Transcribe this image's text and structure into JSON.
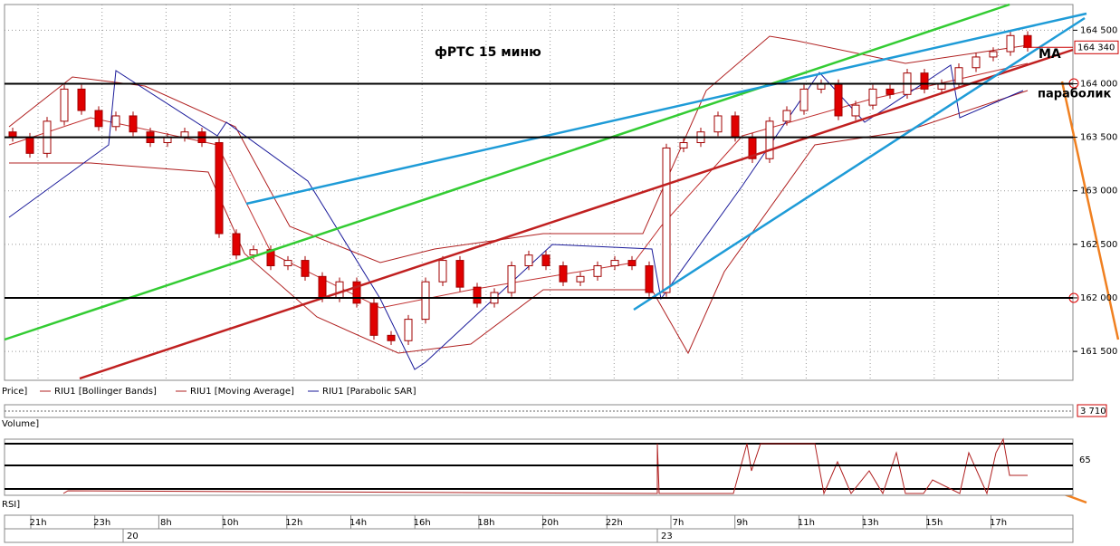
{
  "chart_data": {
    "type": "candlestick",
    "title": "фРТС   15 миню",
    "ohlc": [
      [
        163550,
        163590,
        163460,
        163500
      ],
      [
        163500,
        163540,
        163310,
        163350
      ],
      [
        163350,
        163690,
        163310,
        163650
      ],
      [
        163650,
        163990,
        163610,
        163950
      ],
      [
        163950,
        163990,
        163710,
        163750
      ],
      [
        163750,
        163790,
        163560,
        163600
      ],
      [
        163600,
        163740,
        163560,
        163700
      ],
      [
        163700,
        163740,
        163510,
        163550
      ],
      [
        163550,
        163590,
        163410,
        163450
      ],
      [
        163450,
        163540,
        163410,
        163500
      ],
      [
        163500,
        163590,
        163460,
        163550
      ],
      [
        163550,
        163590,
        163410,
        163450
      ],
      [
        163450,
        163490,
        162560,
        162600
      ],
      [
        162600,
        162640,
        162360,
        162400
      ],
      [
        162400,
        162490,
        162360,
        162450
      ],
      [
        162450,
        162490,
        162260,
        162300
      ],
      [
        162300,
        162390,
        162260,
        162350
      ],
      [
        162350,
        162390,
        162160,
        162200
      ],
      [
        162200,
        162240,
        161960,
        162000
      ],
      [
        162000,
        162190,
        161960,
        162150
      ],
      [
        162150,
        162190,
        161910,
        161950
      ],
      [
        161950,
        161990,
        161610,
        161650
      ],
      [
        161650,
        161690,
        161560,
        161600
      ],
      [
        161600,
        161840,
        161560,
        161800
      ],
      [
        161800,
        162190,
        161760,
        162150
      ],
      [
        162150,
        162390,
        162110,
        162350
      ],
      [
        162350,
        162390,
        162060,
        162100
      ],
      [
        162100,
        162140,
        161910,
        161950
      ],
      [
        161950,
        162090,
        161910,
        162050
      ],
      [
        162050,
        162340,
        162010,
        162300
      ],
      [
        162300,
        162440,
        162260,
        162400
      ],
      [
        162400,
        162440,
        162260,
        162300
      ],
      [
        162300,
        162340,
        162110,
        162150
      ],
      [
        162150,
        162240,
        162110,
        162200
      ],
      [
        162200,
        162340,
        162160,
        162300
      ],
      [
        162300,
        162390,
        162260,
        162350
      ],
      [
        162350,
        162390,
        162260,
        162300
      ],
      [
        162300,
        162340,
        162010,
        162050
      ],
      [
        162050,
        163440,
        162010,
        163400
      ],
      [
        163400,
        163490,
        163360,
        163450
      ],
      [
        163450,
        163590,
        163410,
        163550
      ],
      [
        163550,
        163740,
        163510,
        163700
      ],
      [
        163700,
        163740,
        163460,
        163500
      ],
      [
        163500,
        163540,
        163260,
        163300
      ],
      [
        163300,
        163690,
        163260,
        163650
      ],
      [
        163650,
        163790,
        163610,
        163750
      ],
      [
        163750,
        163990,
        163710,
        163950
      ],
      [
        163950,
        164040,
        163910,
        164000
      ],
      [
        164000,
        164040,
        163660,
        163700
      ],
      [
        163700,
        163840,
        163660,
        163800
      ],
      [
        163800,
        163990,
        163760,
        163950
      ],
      [
        163950,
        163990,
        163860,
        163900
      ],
      [
        163900,
        164140,
        163860,
        164100
      ],
      [
        164100,
        164140,
        163910,
        163950
      ],
      [
        163950,
        164040,
        163910,
        164000
      ],
      [
        164000,
        164190,
        163960,
        164150
      ],
      [
        164150,
        164290,
        164110,
        164250
      ],
      [
        164250,
        164340,
        164210,
        164300
      ],
      [
        164300,
        164490,
        164260,
        164450
      ],
      [
        164450,
        164490,
        164300,
        164340
      ]
    ],
    "ylim": [
      161230,
      164740
    ],
    "yticks": [
      {
        "value": 161500,
        "label": "161 500"
      },
      {
        "value": 162000,
        "label": "162 000"
      },
      {
        "value": 162500,
        "label": "162 500"
      },
      {
        "value": 163000,
        "label": "163 000"
      },
      {
        "value": 163500,
        "label": "163 500"
      },
      {
        "value": 164000,
        "label": "164 000"
      },
      {
        "value": 164500,
        "label": "164 500"
      }
    ],
    "level_lines": [
      164000,
      163500,
      162000
    ],
    "last_price": {
      "value": 164340,
      "label": "164 340"
    },
    "x_labels": [
      "21h",
      "23h",
      "8h",
      "10h",
      "12h",
      "14h",
      "16h",
      "18h",
      "20h",
      "22h",
      "7h",
      "9h",
      "11h",
      "13h",
      "15h",
      "17h"
    ],
    "day_labels": [
      "20",
      "23"
    ],
    "up_color": "#ffffff",
    "down_color": "#e00000",
    "edge_color": "#a00000",
    "annotations": [
      "MA",
      "параболик"
    ],
    "legend": [
      "Price]",
      "RIU1 [Bollinger Bands]",
      "RIU1 [Moving Average]",
      "RIU1 [Parabolic SAR]"
    ],
    "volume": {
      "label": "Volume]",
      "last": {
        "value": 3710,
        "label": "3 710"
      }
    },
    "rsi": {
      "label": "RSI]",
      "yticks": [
        65
      ]
    }
  }
}
